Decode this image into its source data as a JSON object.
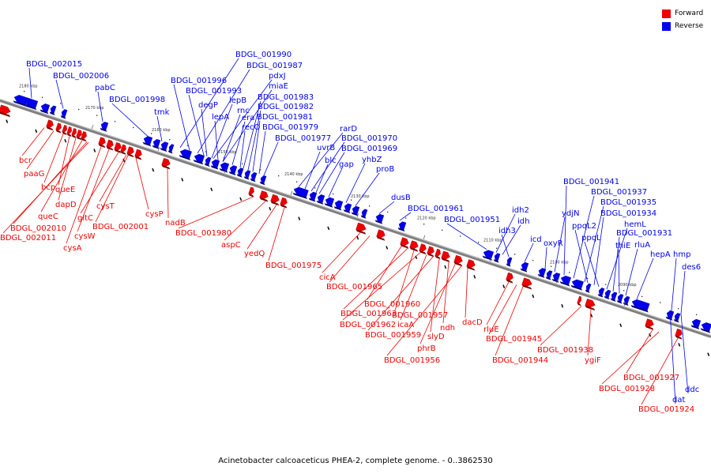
{
  "legend": {
    "forward_label": "Forward",
    "reverse_label": "Reverse",
    "forward_color": "#ee0000",
    "reverse_color": "#0000ee"
  },
  "caption": "Acinetobacter calcoaceticus PHEA-2, complete genome. - 0..3862530",
  "ticks": [
    "2180 kbp",
    "2170 kbp",
    "2160 kbp",
    "2150 kbp",
    "2140 kbp",
    "2130 kbp",
    "2120 kbp",
    "2110 kbp",
    "2100 kbp",
    "2090 kbp"
  ],
  "forward_genes": [
    "bcr",
    "paaG",
    "bcp",
    "queE",
    "dapD",
    "queC",
    "BDGL_002010",
    "BDGL_002011",
    "cysA",
    "cysW",
    "gltC",
    "cysT",
    "BDGL_002001",
    "cysP",
    "nadB",
    "BDGL_001980",
    "aspC",
    "yedQ",
    "BDGL_001975",
    "cicA",
    "BDGL_001965",
    "BDGL_001960",
    "BDGL_001963",
    "BDGL_001957",
    "BDGL_001962",
    "icaA",
    "BDGL_001959",
    "slyD",
    "ndh",
    "phrB",
    "BDGL_001956",
    "dacD",
    "rluE",
    "BDGL_001945",
    "BDGL_001944",
    "BDGL_001938",
    "ygiF",
    "BDGL_001927",
    "BDGL_001928",
    "BDGL_001924"
  ],
  "reverse_genes": [
    "BDGL_002015",
    "BDGL_002006",
    "pabC",
    "BDGL_001998",
    "tmk",
    "BDGL_001990",
    "BDGL_001987",
    "pdxJ",
    "miaE",
    "BDGL_001996",
    "BDGL_001993",
    "lepB",
    "rnc",
    "era",
    "recO",
    "degP",
    "lepA",
    "BDGL_001983",
    "BDGL_001982",
    "BDGL_001981",
    "BDGL_001979",
    "BDGL_001977",
    "rarD",
    "BDGL_001970",
    "BDGL_001969",
    "uvrB",
    "blc",
    "gap",
    "yhbZ",
    "proB",
    "dusB",
    "BDGL_001961",
    "BDGL_001951",
    "idh2",
    "idh",
    "idh3",
    "icd",
    "oxyR",
    "ydjN",
    "BDGL_001941",
    "BDGL_001937",
    "BDGL_001935",
    "BDGL_001934",
    "ppqL2",
    "ppqL",
    "hemL",
    "BDGL_001931",
    "thiE",
    "rluA",
    "hepA",
    "hmp",
    "des6",
    "dat",
    "ddc"
  ]
}
